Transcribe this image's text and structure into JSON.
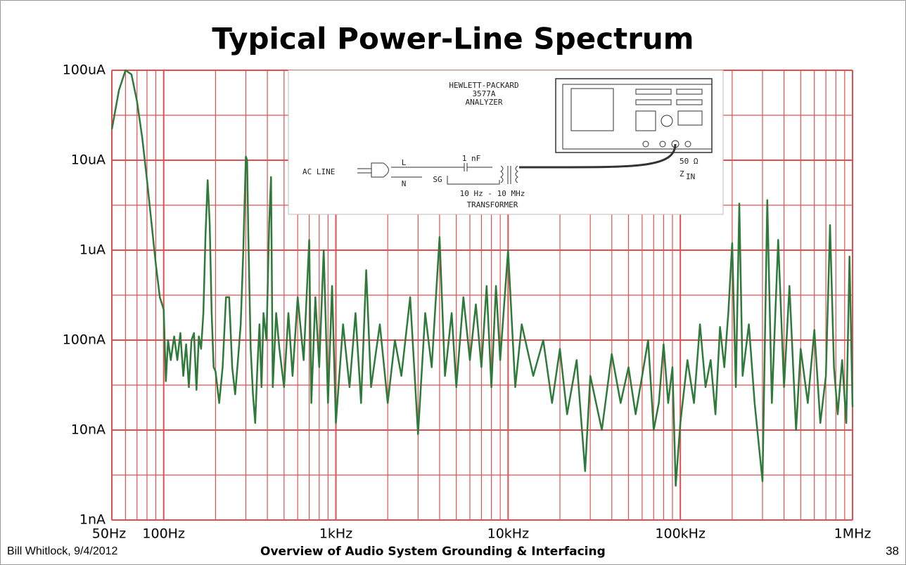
{
  "chart_data": {
    "type": "line",
    "title": "Typical Power-Line Spectrum",
    "log_x": true,
    "log_y": true,
    "grid": true,
    "minor_grid": true,
    "grid_color": "#e05050",
    "xlim": [
      50,
      1000000
    ],
    "xticks": [
      {
        "value": 50,
        "label": "50Hz"
      },
      {
        "value": 100,
        "label": "100Hz"
      },
      {
        "value": 1000,
        "label": "1kHz"
      },
      {
        "value": 10000,
        "label": "10kHz"
      },
      {
        "value": 100000,
        "label": "100kHz"
      },
      {
        "value": 1000000,
        "label": "1MHz"
      }
    ],
    "ylim": [
      1e-09,
      0.0001
    ],
    "yticks": [
      {
        "value": 1e-09,
        "label": "1nA"
      },
      {
        "value": 1e-08,
        "label": "10nA"
      },
      {
        "value": 1e-07,
        "label": "100nA"
      },
      {
        "value": 1e-06,
        "label": "1uA"
      },
      {
        "value": 1e-05,
        "label": "10uA"
      },
      {
        "value": 0.0001,
        "label": "100uA"
      }
    ],
    "series": [
      {
        "color": "#2e7a3a",
        "x": [
          50,
          55,
          60,
          65,
          70,
          75,
          80,
          85,
          90,
          95,
          100,
          103,
          106,
          110,
          115,
          120,
          125,
          130,
          135,
          140,
          145,
          150,
          155,
          160,
          165,
          170,
          175,
          180,
          185,
          190,
          195,
          200,
          210,
          220,
          230,
          240,
          250,
          260,
          270,
          280,
          290,
          300,
          305,
          310,
          320,
          330,
          340,
          350,
          360,
          370,
          380,
          395,
          410,
          420,
          430,
          450,
          470,
          500,
          530,
          560,
          600,
          650,
          700,
          720,
          760,
          800,
          850,
          900,
          950,
          1000,
          1100,
          1200,
          1300,
          1400,
          1500,
          1600,
          1800,
          2000,
          2200,
          2400,
          2700,
          3000,
          3300,
          3600,
          4000,
          4300,
          4700,
          5000,
          5500,
          6000,
          6500,
          7000,
          7500,
          8000,
          8500,
          9000,
          10000,
          11000,
          12000,
          14000,
          16000,
          18000,
          20000,
          22000,
          25000,
          28000,
          30000,
          35000,
          40000,
          45000,
          50000,
          55000,
          60000,
          65000,
          70000,
          75000,
          80000,
          85000,
          90000,
          94000,
          100000,
          110000,
          120000,
          130000,
          140000,
          150000,
          160000,
          170000,
          180000,
          190000,
          200000,
          210000,
          220000,
          230000,
          250000,
          270000,
          300000,
          320000,
          340000,
          370000,
          400000,
          430000,
          470000,
          500000,
          550000,
          600000,
          650000,
          700000,
          740000,
          780000,
          820000,
          870000,
          920000,
          960000,
          1000000
        ],
        "values": [
          2.2e-05,
          6e-05,
          0.0001,
          9e-05,
          4.5e-05,
          1.8e-05,
          6e-06,
          2e-06,
          7e-07,
          3e-07,
          2.2e-07,
          3.5e-08,
          1e-07,
          6e-08,
          1.1e-07,
          6e-08,
          1.2e-07,
          4e-08,
          9e-08,
          3e-08,
          1e-07,
          1.2e-07,
          2.8e-08,
          1.1e-07,
          8e-08,
          2e-07,
          1.5e-06,
          6e-06,
          2e-06,
          2e-07,
          5e-08,
          4.5e-08,
          2e-08,
          5e-08,
          3e-07,
          3e-07,
          5e-08,
          2.5e-08,
          6e-08,
          1.5e-07,
          1e-06,
          1.1e-05,
          1e-05,
          1.5e-06,
          8e-08,
          2.5e-08,
          1.2e-08,
          5e-08,
          1.5e-07,
          3e-08,
          2e-07,
          1e-07,
          2e-06,
          6.5e-06,
          3e-08,
          2e-07,
          8e-08,
          3e-08,
          2e-07,
          4e-08,
          3e-07,
          6e-08,
          1.3e-06,
          2e-08,
          3e-07,
          5e-08,
          1e-06,
          2e-08,
          4e-07,
          1.2e-08,
          1.5e-07,
          3e-08,
          2e-07,
          2e-08,
          6e-07,
          3e-08,
          1.5e-07,
          2e-08,
          1e-07,
          4e-08,
          3e-07,
          9e-09,
          2e-07,
          5e-08,
          1.4e-06,
          4e-08,
          2e-07,
          3e-08,
          3e-07,
          6e-08,
          2.5e-07,
          5e-08,
          4e-07,
          3e-08,
          4e-07,
          6e-08,
          1e-06,
          3e-08,
          1.5e-07,
          4e-08,
          1e-07,
          2e-08,
          8e-08,
          1.5e-08,
          6e-08,
          3.5e-09,
          4e-08,
          1e-08,
          7e-08,
          2e-08,
          5e-08,
          1.5e-08,
          4e-08,
          1e-07,
          1e-08,
          2e-08,
          9e-08,
          2e-08,
          5e-08,
          2.4e-09,
          1.2e-08,
          6e-08,
          2e-08,
          1.5e-07,
          3e-08,
          6e-08,
          1.5e-08,
          1.4e-07,
          5e-08,
          2e-07,
          1.2e-06,
          3e-08,
          3.3e-06,
          4e-08,
          1.5e-07,
          2e-08,
          2.7e-09,
          3.6e-06,
          2e-08,
          1.3e-06,
          3e-08,
          4e-07,
          1e-08,
          8e-08,
          2e-08,
          1.3e-07,
          1.2e-08,
          4e-08,
          1.9e-06,
          5e-08,
          1.5e-08,
          6e-08,
          1.2e-08,
          8.5e-07,
          1.8e-08
        ]
      }
    ],
    "annotations": [
      "HEWLETT-PACKARD",
      "3577A",
      "ANALYZER",
      "1 nF",
      "L",
      "N",
      "SG",
      "AC LINE",
      "10 Hz - 10 MHz",
      "TRANSFORMER",
      "50 Ω",
      "Z",
      "IN"
    ]
  },
  "footer": {
    "author": "Bill Whitlock, 9/4/2012",
    "title": "Overview of Audio System Grounding & Interfacing",
    "page": "38"
  }
}
